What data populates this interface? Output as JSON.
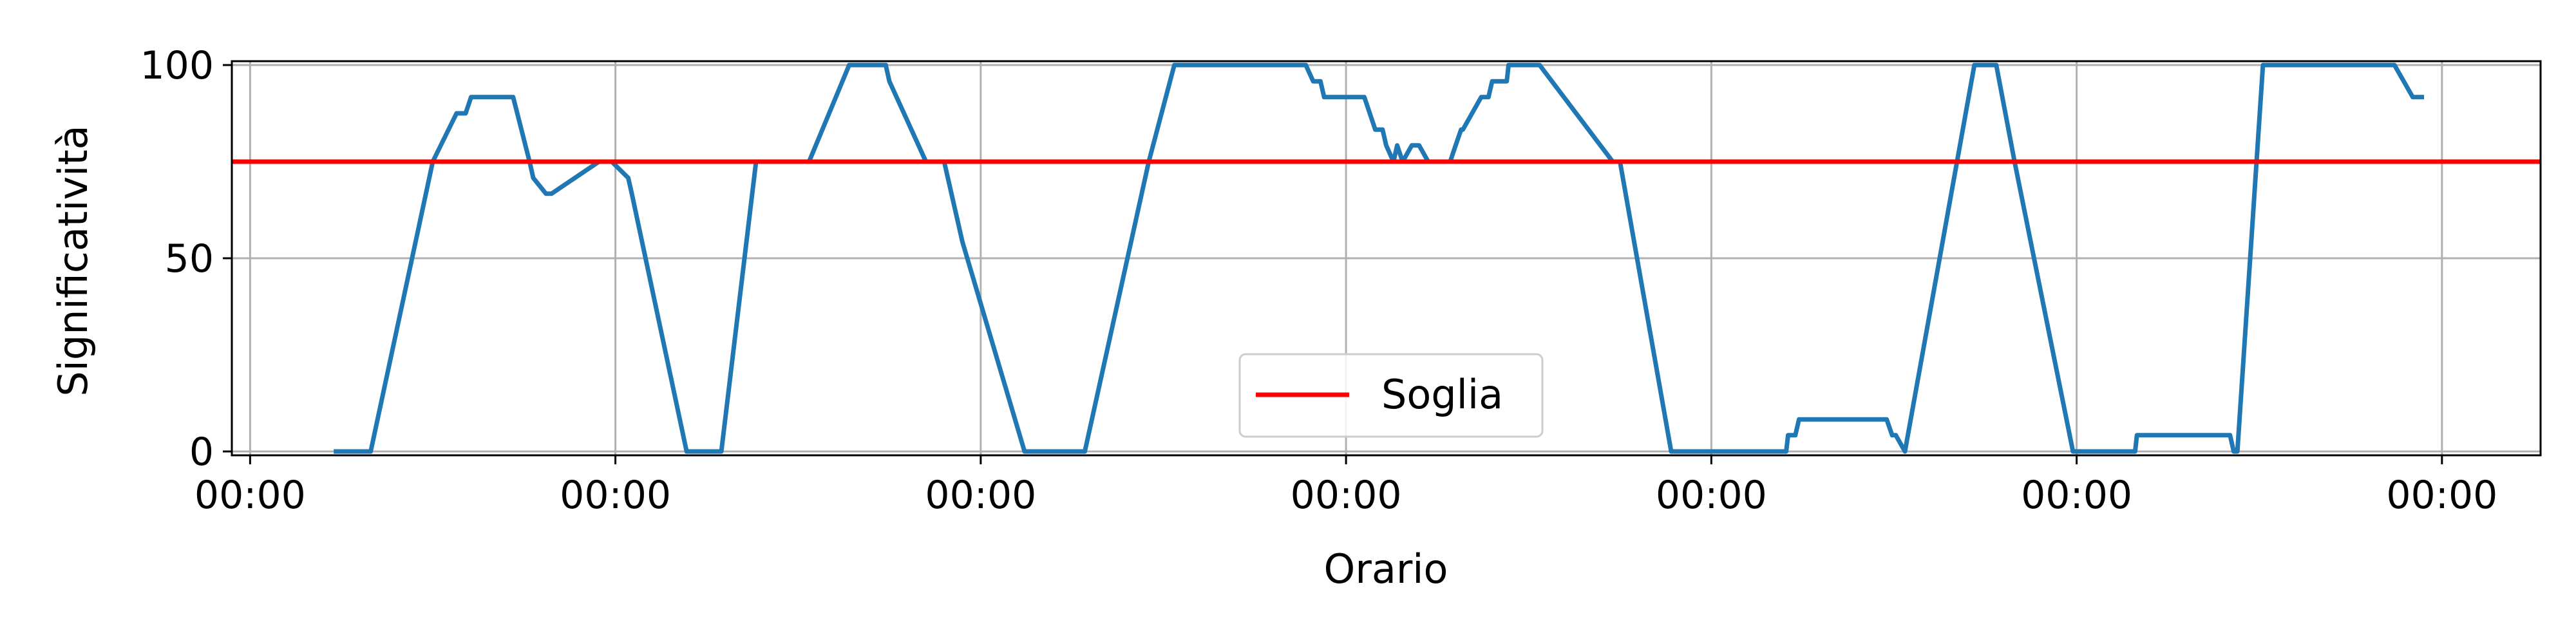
{
  "chart_data": {
    "type": "line",
    "title": "",
    "xlabel": "Orario",
    "ylabel": "Significatività",
    "x_ticks": [
      0,
      1,
      2,
      3,
      4,
      5,
      6
    ],
    "x_tick_labels": [
      "00:00",
      "00:00",
      "00:00",
      "00:00",
      "00:00",
      "00:00",
      "00:00"
    ],
    "y_ticks": [
      0,
      50,
      100
    ],
    "y_tick_labels": [
      "0",
      "50",
      "100"
    ],
    "xlim": [
      -0.05,
      6.27
    ],
    "ylim": [
      -1,
      101
    ],
    "grid": true,
    "legend_position": "lower center",
    "series": [
      {
        "name": "",
        "color": "#1f77b4",
        "x": [
          0.235,
          0.33,
          0.5,
          0.565,
          0.59,
          0.605,
          0.72,
          0.765,
          0.775,
          0.81,
          0.825,
          0.955,
          0.98,
          0.99,
          1.035,
          1.045,
          1.195,
          1.29,
          1.385,
          1.53,
          1.64,
          1.74,
          1.75,
          1.85,
          1.86,
          1.9,
          1.95,
          2.12,
          2.285,
          2.46,
          2.53,
          2.89,
          2.91,
          2.93,
          2.94,
          3.05,
          3.08,
          3.1,
          3.11,
          3.13,
          3.14,
          3.155,
          3.18,
          3.2,
          3.225,
          3.27,
          3.285,
          3.3,
          3.315,
          3.32,
          3.37,
          3.39,
          3.4,
          3.44,
          3.445,
          3.52,
          3.53,
          3.73,
          3.75,
          3.89,
          3.94,
          4.06,
          4.2,
          4.205,
          4.21,
          4.23,
          4.24,
          4.48,
          4.495,
          4.505,
          4.53,
          4.72,
          4.78,
          4.83,
          4.99,
          5.12,
          5.16,
          5.165,
          5.18,
          5.19,
          5.42,
          5.43,
          5.44,
          5.51,
          5.6,
          5.86,
          5.87,
          5.92,
          5.945
        ],
        "y": [
          0,
          0,
          75,
          87.5,
          87.5,
          91.7,
          91.7,
          75,
          70.8,
          66.7,
          66.7,
          75,
          75,
          75,
          70.8,
          66.7,
          0,
          0,
          75,
          75,
          100,
          100,
          95.8,
          75,
          75,
          75,
          54.2,
          0,
          0,
          75,
          100,
          100,
          95.8,
          95.8,
          91.7,
          91.7,
          83.3,
          83.3,
          79.2,
          75,
          79.2,
          75,
          79.2,
          79.2,
          75,
          75,
          75,
          79.2,
          83.3,
          83.3,
          91.7,
          91.7,
          95.8,
          95.8,
          100,
          100,
          100,
          75,
          75,
          0,
          0,
          0,
          0,
          0,
          4.2,
          4.2,
          8.3,
          8.3,
          4.2,
          4.2,
          0,
          100,
          100,
          75,
          0,
          0,
          0,
          4.2,
          4.2,
          4.2,
          4.2,
          0,
          0,
          100,
          100,
          100,
          100,
          91.7,
          91.7
        ]
      }
    ],
    "threshold": {
      "name": "Soglia",
      "value": 75,
      "color": "#ff0000"
    }
  }
}
